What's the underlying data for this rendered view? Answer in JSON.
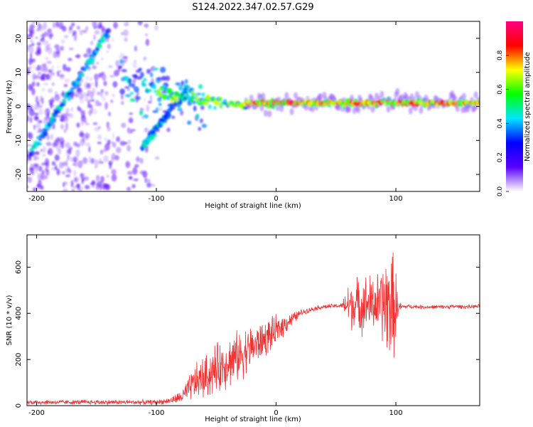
{
  "title": "S124.2022.347.02.57.G29",
  "chart_data": [
    {
      "type": "heatmap",
      "name": "spectrogram",
      "xlabel": "Height of straight line (km)",
      "ylabel": "Frequency (Hz)",
      "xlim": [
        -208,
        170
      ],
      "ylim": [
        -25,
        25
      ],
      "xticks": [
        -200,
        -100,
        0,
        100
      ],
      "yticks": [
        -20,
        -10,
        0,
        10,
        20
      ],
      "colorbar": {
        "label": "Normalized spectral amplitude",
        "range": [
          0,
          1
        ],
        "ticks": [
          "0.0",
          "0.2",
          "0.4",
          "0.6",
          "0.8"
        ],
        "colors": [
          "#ffffff",
          "#5a00ff",
          "#0000ff",
          "#00e5ff",
          "#00ff00",
          "#ffff00",
          "#ff0000",
          "#ff0080"
        ]
      },
      "features": [
        {
          "segment": "diagonal-ridge-1",
          "from": [
            -205,
            -14
          ],
          "to": [
            -140,
            22
          ],
          "level": 0.45
        },
        {
          "segment": "diagonal-ridge-2",
          "from": [
            -112,
            -12
          ],
          "to": [
            -75,
            5
          ],
          "level": 0.3
        },
        {
          "segment": "broad-cloud",
          "from": [
            -130,
            7
          ],
          "to": [
            -60,
            0
          ],
          "level": 0.4
        },
        {
          "segment": "converging-core",
          "from": [
            -100,
            4
          ],
          "to": [
            -25,
            0
          ],
          "level": 0.6
        },
        {
          "segment": "stable-line",
          "from": [
            -25,
            1
          ],
          "to": [
            170,
            1
          ],
          "level": 0.9
        }
      ]
    },
    {
      "type": "line",
      "name": "snr",
      "xlabel": "Height of straight line (km)",
      "ylabel": "SNR (10 * v/v)",
      "xlim": [
        -208,
        170
      ],
      "ylim": [
        0,
        740
      ],
      "xticks": [
        -200,
        -100,
        0,
        100
      ],
      "yticks": [
        0,
        200,
        400,
        600
      ],
      "color": "#ee3333",
      "series": [
        {
          "x": [
            -208,
            -200,
            -180,
            -160,
            -140,
            -120,
            -100,
            -90,
            -80,
            -75,
            -70,
            -65,
            -60,
            -55,
            -50,
            -45,
            -40,
            -35,
            -30,
            -25,
            -20,
            -15,
            -10,
            -5,
            0,
            5,
            10,
            15,
            20,
            25,
            30,
            35,
            40,
            45,
            50,
            55,
            60,
            65,
            70,
            75,
            80,
            85,
            90,
            92,
            94,
            96,
            98,
            100,
            102,
            105,
            110,
            120,
            130,
            140,
            150,
            160,
            170
          ],
          "y": [
            15,
            15,
            15,
            15,
            15,
            15,
            15,
            20,
            35,
            55,
            90,
            110,
            120,
            140,
            160,
            175,
            190,
            205,
            220,
            240,
            255,
            270,
            285,
            305,
            320,
            345,
            365,
            380,
            400,
            410,
            418,
            425,
            428,
            430,
            432,
            433,
            435,
            437,
            438,
            440,
            440,
            440,
            440,
            440,
            440,
            435,
            430,
            425,
            425,
            428,
            430,
            428,
            427,
            428,
            430,
            428,
            430
          ],
          "noise": [
            12,
            12,
            12,
            12,
            12,
            12,
            12,
            15,
            30,
            55,
            80,
            100,
            110,
            120,
            125,
            130,
            130,
            130,
            125,
            120,
            110,
            100,
            95,
            85,
            80,
            60,
            45,
            30,
            18,
            14,
            12,
            12,
            12,
            12,
            12,
            12,
            120,
            130,
            140,
            150,
            150,
            160,
            220,
            260,
            280,
            300,
            260,
            200,
            40,
            12,
            10,
            10,
            10,
            10,
            10,
            10,
            10
          ]
        }
      ]
    }
  ]
}
